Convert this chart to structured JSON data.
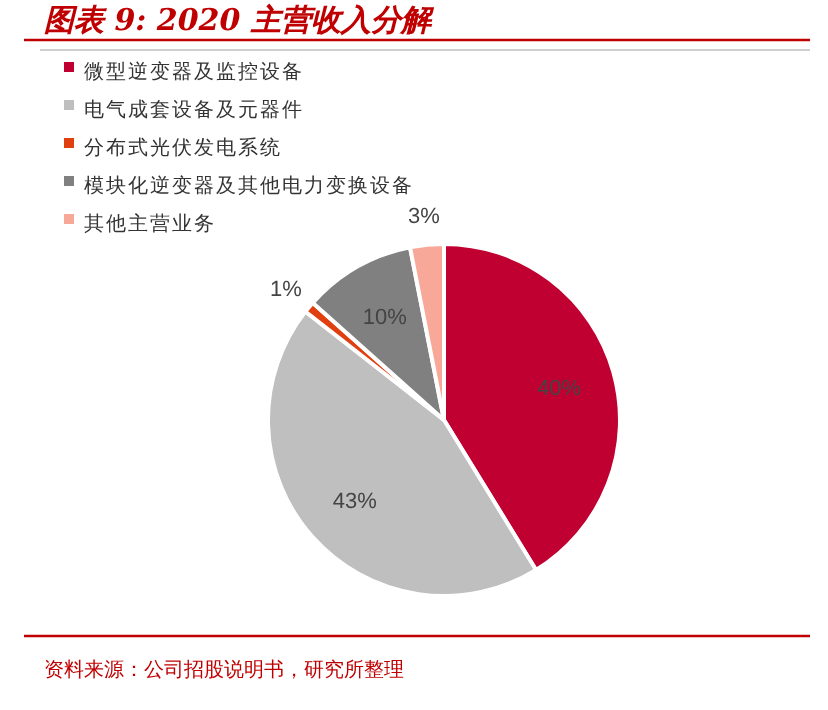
{
  "chart_data": {
    "type": "pie",
    "title": "图表 9: 2020 主营收入分解",
    "categories": [
      "微型逆变器及监控设备",
      "电气成套设备及元器件",
      "分布式光伏发电系统",
      "模块化逆变器及其他电力变换设备",
      "其他主营业务"
    ],
    "values": [
      40,
      43,
      1,
      10,
      3
    ],
    "value_labels": [
      "40%",
      "43%",
      "1%",
      "10%",
      "3%"
    ],
    "colors": [
      "#c00030",
      "#bfbfbf",
      "#e04010",
      "#808080",
      "#f8a898"
    ],
    "legend": "top left",
    "annotations": [
      "资料来源：公司招股说明书，研究所整理"
    ]
  }
}
